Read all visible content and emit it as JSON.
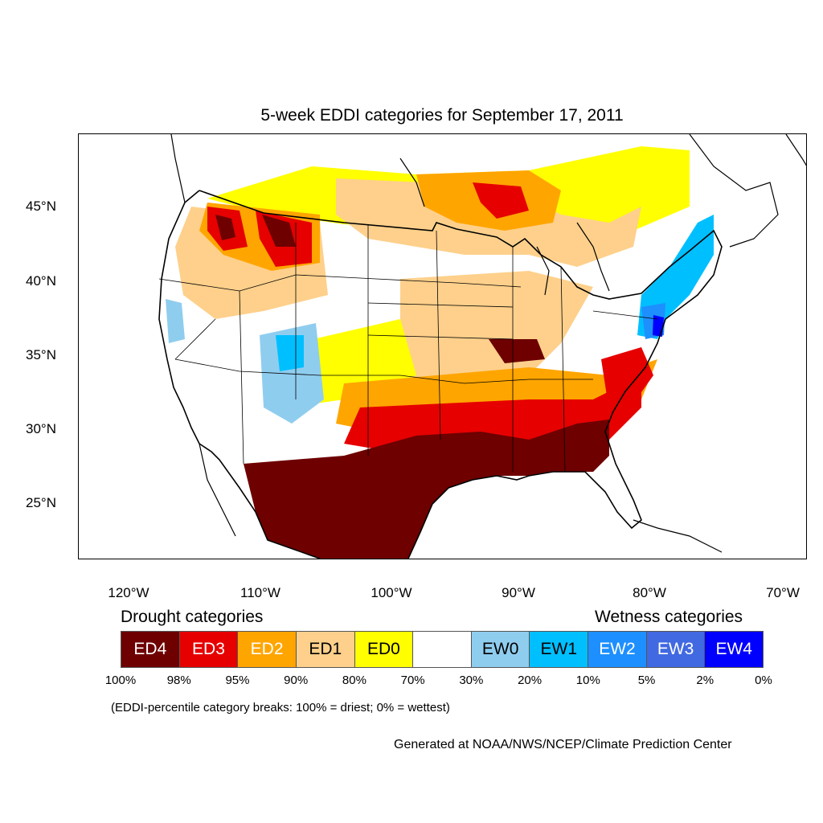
{
  "title": "5-week EDDI categories for September 17, 2011",
  "lat_labels": [
    "45°N",
    "40°N",
    "35°N",
    "30°N",
    "25°N"
  ],
  "lon_labels": [
    "120°W",
    "110°W",
    "100°W",
    "90°W",
    "80°W",
    "70°W"
  ],
  "legend": {
    "drought_heading": "Drought categories",
    "wetness_heading": "Wetness categories",
    "categories": [
      {
        "label": "ED4",
        "color": "#6e0000",
        "text_color": "#ffffff"
      },
      {
        "label": "ED3",
        "color": "#e60000",
        "text_color": "#ffffff"
      },
      {
        "label": "ED2",
        "color": "#ffa500",
        "text_color": "#ffffff"
      },
      {
        "label": "ED1",
        "color": "#fed08b",
        "text_color": "#000000"
      },
      {
        "label": "ED0",
        "color": "#ffff00",
        "text_color": "#000000"
      },
      {
        "label": "",
        "color": "#ffffff",
        "text_color": "#000000"
      },
      {
        "label": "EW0",
        "color": "#8fcdef",
        "text_color": "#000000"
      },
      {
        "label": "EW1",
        "color": "#00bfff",
        "text_color": "#000000"
      },
      {
        "label": "EW2",
        "color": "#1e8fff",
        "text_color": "#ffffff"
      },
      {
        "label": "EW3",
        "color": "#4169e1",
        "text_color": "#ffffff"
      },
      {
        "label": "EW4",
        "color": "#0000ff",
        "text_color": "#ffffff"
      }
    ],
    "breaks": [
      "100%",
      "98%",
      "95%",
      "90%",
      "80%",
      "70%",
      "30%",
      "20%",
      "10%",
      "5%",
      "2%",
      "0%"
    ]
  },
  "note": "(EDDI-percentile category breaks: 100% = driest; 0% = wettest)",
  "credit": "Generated at NOAA/NWS/NCEP/Climate Prediction Center"
}
